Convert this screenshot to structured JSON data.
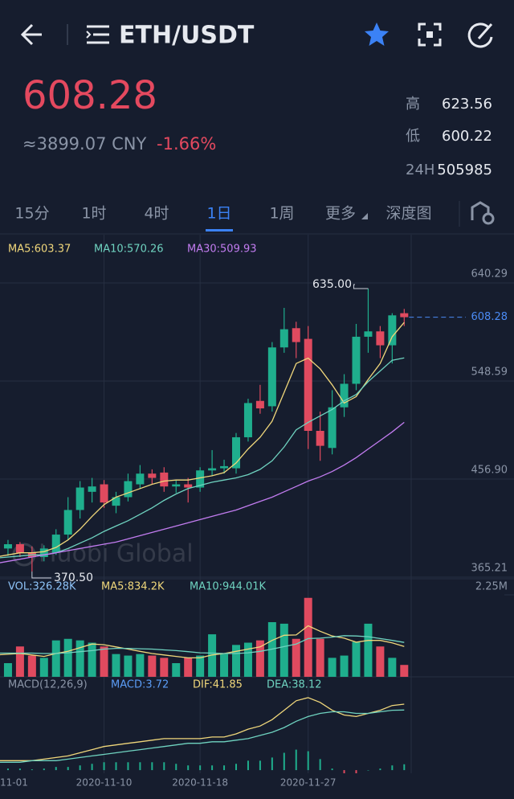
{
  "header": {
    "pair": "ETH/USDT",
    "price": "608.28",
    "cny": "≈3899.07 CNY",
    "change": "-1.66%",
    "stats": [
      {
        "label": "高",
        "value": "623.56"
      },
      {
        "label": "低",
        "value": "600.22"
      },
      {
        "label": "24H",
        "value": "505985"
      }
    ]
  },
  "tabs": {
    "items": [
      "15分",
      "1时",
      "4时",
      "1日",
      "1周",
      "更多",
      "深度图"
    ],
    "active": 3
  },
  "watermark": "Huobi Global",
  "chart_data": {
    "type": "candlestick",
    "categories": [
      "11-01",
      null,
      null,
      null,
      null,
      null,
      null,
      null,
      null,
      "2020-11-10",
      null,
      null,
      null,
      null,
      null,
      null,
      null,
      "2020-11-18",
      null,
      null,
      null,
      null,
      null,
      null,
      null,
      null,
      "2020-11-27",
      null,
      null,
      null,
      null,
      null,
      null,
      null,
      null
    ],
    "open": [
      386,
      392,
      396,
      388,
      384,
      388,
      405,
      428,
      445,
      452,
      432,
      440,
      452,
      462,
      463,
      450,
      452,
      449,
      465,
      467,
      467,
      496,
      530,
      525,
      580,
      598,
      588,
      502,
      486,
      524,
      546,
      590,
      595,
      582,
      612
    ],
    "high": [
      396,
      400,
      398,
      394,
      395,
      410,
      440,
      455,
      458,
      456,
      445,
      462,
      470,
      466,
      468,
      456,
      458,
      468,
      484,
      475,
      500,
      532,
      545,
      585,
      617,
      604,
      600,
      520,
      540,
      555,
      602,
      635,
      600,
      612,
      616
    ],
    "low": [
      380,
      385,
      384,
      370.5,
      380,
      386,
      400,
      420,
      435,
      430,
      425,
      436,
      448,
      452,
      445,
      444,
      435,
      445,
      460,
      462,
      462,
      492,
      518,
      520,
      575,
      570,
      485,
      474,
      480,
      515,
      540,
      575,
      570,
      565,
      600
    ],
    "close": [
      392,
      396,
      388,
      384,
      392,
      405,
      428,
      449,
      450,
      435,
      440,
      455,
      462,
      458,
      450,
      452,
      449,
      465,
      467,
      469,
      496,
      528,
      523,
      580,
      597,
      585,
      502,
      488,
      524,
      546,
      590,
      595,
      582,
      610,
      608.28
    ],
    "up_color": "#1fae8d",
    "down_color": "#e04a5f",
    "ylim": [
      365.21,
      640.29
    ],
    "yticks": [
      640.29,
      548.59,
      {
        "value": 456.9,
        "label": "456.90"
      },
      365.21
    ],
    "grid": true,
    "last_price": 608.28,
    "high_label": "635.00",
    "low_label": "370.50",
    "series": [
      {
        "name": "MA5:603.37",
        "color": "#f0d77b",
        "values": [
          384,
          386,
          388,
          388,
          389,
          393,
          400,
          410,
          422,
          433,
          440,
          444,
          448,
          452,
          455,
          456,
          456,
          458,
          460,
          463,
          472,
          485,
          496,
          511,
          538,
          565,
          570,
          560,
          545,
          528,
          534,
          550,
          565,
          590,
          603.37
        ]
      },
      {
        "name": "MA10:570.26",
        "color": "#6fd3c0",
        "values": [
          383,
          384,
          385,
          386,
          386,
          388,
          392,
          397,
          402,
          408,
          413,
          418,
          424,
          430,
          437,
          443,
          448,
          451,
          454,
          456,
          458,
          461,
          466,
          474,
          487,
          503,
          510,
          516,
          522,
          530,
          536,
          548,
          558,
          568,
          570.26
        ]
      },
      {
        "name": "MA30:509.93",
        "color": "#c27cf0",
        "values": [
          378,
          380,
          382,
          384,
          386,
          388,
          390,
          392,
          394,
          396,
          398,
          401,
          404,
          407,
          410,
          413,
          416,
          419,
          422,
          425,
          428,
          432,
          436,
          440,
          445,
          450,
          455,
          459,
          464,
          470,
          477,
          485,
          493,
          501,
          509.93
        ]
      }
    ],
    "volume": {
      "name": "VOL:326.28K",
      "color": "#8ec3f7",
      "values": [
        375000,
        375000,
        833000,
        583000,
        521000,
        1000000,
        1042000,
        1000000,
        937000,
        833000,
        625000,
        583000,
        625000,
        583000,
        521000,
        375000,
        521000,
        583000,
        1167000,
        625000,
        875000,
        937000,
        1000000,
        1500000,
        1458000,
        1042000,
        2167000,
        1042000,
        521000,
        583000,
        958000,
        1458000,
        833000,
        521000,
        326280
      ],
      "ylim": [
        0,
        2250000
      ],
      "yticks": [
        {
          "value": 2250000,
          "label": "2.25M"
        }
      ],
      "series": [
        {
          "name": "MA5:834.2K",
          "color": "#f0d77b",
          "values": [
            600000,
            620000,
            640000,
            600000,
            560000,
            640000,
            700000,
            800000,
            900000,
            880000,
            820000,
            760000,
            700000,
            640000,
            600000,
            560000,
            520000,
            520000,
            600000,
            640000,
            700000,
            760000,
            820000,
            1000000,
            1140000,
            1150000,
            1400000,
            1250000,
            1120000,
            1060000,
            950000,
            1000000,
            1000000,
            930000,
            834200
          ]
        },
        {
          "name": "MA10:944.01K",
          "color": "#6fd3c0",
          "values": [
            650000,
            650000,
            650000,
            650000,
            640000,
            640000,
            660000,
            690000,
            720000,
            760000,
            780000,
            780000,
            770000,
            760000,
            740000,
            720000,
            690000,
            660000,
            650000,
            640000,
            640000,
            660000,
            700000,
            760000,
            830000,
            900000,
            1050000,
            1060000,
            1090000,
            1130000,
            1120000,
            1100000,
            1050000,
            1000000,
            944010
          ]
        }
      ]
    },
    "macd": {
      "title": "MACD(12,26,9)",
      "ylim": [
        -2,
        49
      ],
      "hist": {
        "name": "MACD:3.72",
        "color": "#5b9cf5",
        "values": [
          1,
          1,
          1,
          0.5,
          1,
          2,
          2,
          3,
          4,
          5,
          5,
          5,
          5,
          5,
          5,
          4,
          3,
          3,
          3,
          3,
          4,
          6,
          6,
          8,
          11,
          13,
          12,
          7,
          1,
          -2,
          -2,
          0,
          1,
          3,
          3.72
        ]
      },
      "series": [
        {
          "name": "DIF:41.85",
          "color": "#f0d77b",
          "values": [
            6,
            6,
            6,
            6,
            7,
            8,
            9,
            11,
            13,
            15,
            16,
            17,
            18,
            19,
            20,
            20,
            20,
            20,
            21,
            21,
            23,
            26,
            28,
            32,
            38,
            44,
            46,
            43,
            38,
            35,
            34,
            36,
            38,
            41,
            41.85
          ]
        },
        {
          "name": "DEA:38.12",
          "color": "#6fd3c0",
          "values": [
            5,
            5,
            5,
            6,
            6,
            6,
            7,
            8,
            9,
            10,
            11,
            12,
            13,
            14,
            15,
            16,
            17,
            17,
            18,
            18,
            19,
            20,
            22,
            24,
            27,
            31,
            34,
            36,
            37,
            37,
            36,
            36,
            37,
            38,
            38.12
          ]
        }
      ]
    }
  }
}
